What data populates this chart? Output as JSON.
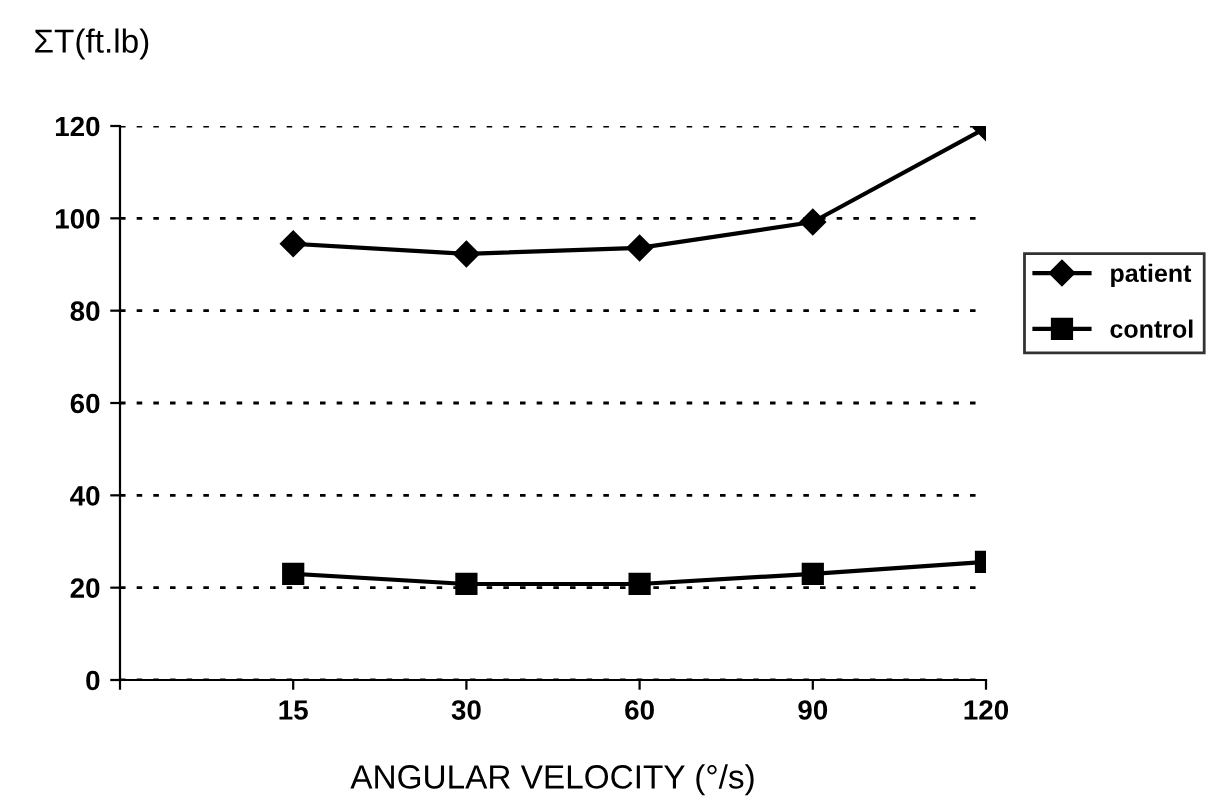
{
  "chart_data": {
    "type": "line",
    "ylabel": "ΣT(ft.lb)",
    "xlabel": "ANGULAR VELOCITY (°/s)",
    "categories": [
      "15",
      "30",
      "60",
      "90",
      "120"
    ],
    "series": [
      {
        "name": "patient",
        "color": "#000000",
        "marker": "diamond",
        "values": [
          94.5,
          92.3,
          93.6,
          99.2,
          119.6
        ]
      },
      {
        "name": "control",
        "color": "#000000",
        "marker": "square",
        "values": [
          23,
          20.8,
          20.8,
          23,
          25.6
        ]
      }
    ],
    "ylim": [
      0,
      120
    ],
    "yticks": [
      0,
      20,
      40,
      60,
      80,
      100,
      120
    ],
    "grid": "y",
    "legend": "right",
    "line_style": "solid"
  }
}
